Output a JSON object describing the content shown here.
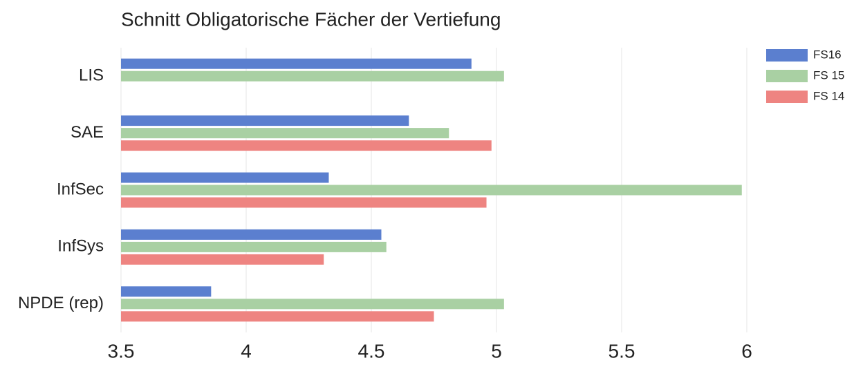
{
  "chart_data": {
    "type": "bar",
    "orientation": "horizontal",
    "title": "Schnitt Obligatorische Fächer der Vertiefung",
    "categories": [
      "LIS",
      "SAE",
      "InfSec",
      "InfSys",
      "NPDE (rep)"
    ],
    "series": [
      {
        "name": "FS16",
        "color": "#5b7fcf",
        "values": [
          4.9,
          4.65,
          4.33,
          4.54,
          3.86
        ]
      },
      {
        "name": "FS 15",
        "color": "#a9d0a3",
        "values": [
          5.03,
          4.81,
          5.98,
          4.56,
          5.03
        ]
      },
      {
        "name": "FS 14",
        "color": "#ee8481",
        "values": [
          null,
          4.98,
          4.96,
          4.31,
          4.75
        ]
      }
    ],
    "xlim": [
      3.5,
      6
    ],
    "xticks": [
      3.5,
      4,
      4.5,
      5,
      5.5,
      6
    ],
    "grid": true,
    "legend": "top-right"
  }
}
